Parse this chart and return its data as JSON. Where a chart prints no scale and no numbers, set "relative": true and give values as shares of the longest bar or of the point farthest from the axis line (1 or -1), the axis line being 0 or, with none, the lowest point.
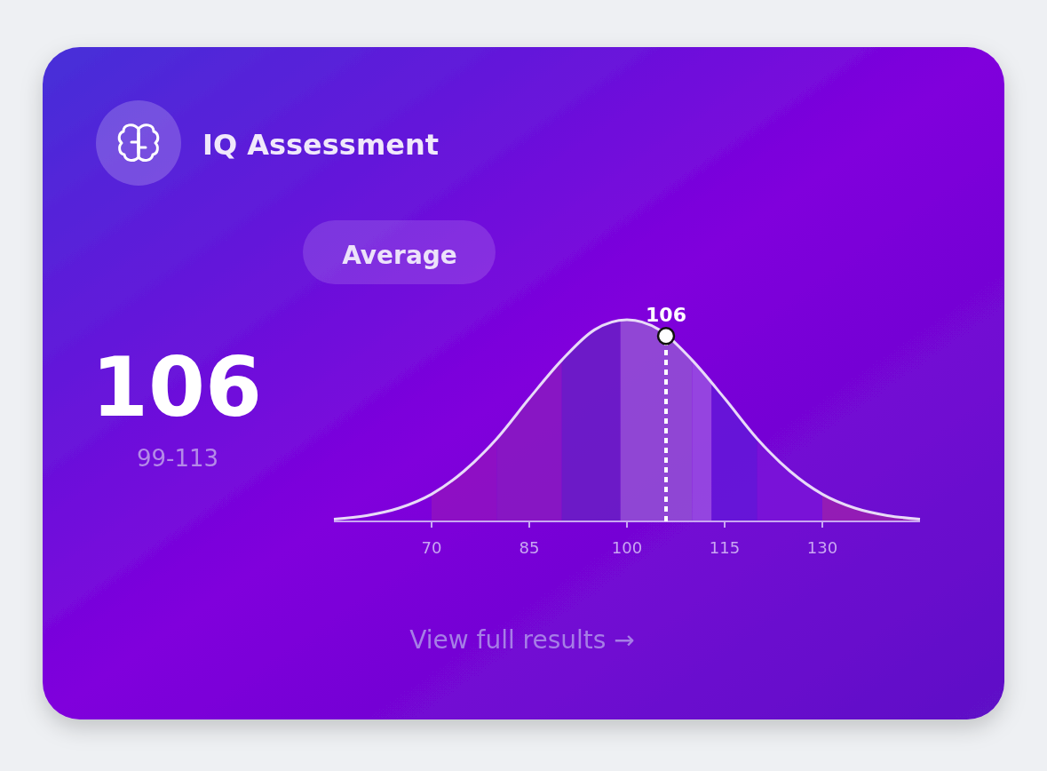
{
  "chart_data": {
    "type": "line",
    "title": "IQ Assessment",
    "relative": true,
    "xlim": [
      55,
      145
    ],
    "xticks": [
      70,
      85,
      100,
      115,
      130
    ],
    "series": [
      {
        "color": "#e8daf8",
        "x": [
          55,
          60,
          65,
          70,
          75,
          80,
          85,
          90,
          95,
          100,
          105,
          110,
          115,
          120,
          125,
          130,
          135,
          140,
          145
        ],
        "values": [
          0.011,
          0.029,
          0.066,
          0.135,
          0.25,
          0.41,
          0.61,
          0.8,
          0.95,
          1,
          0.95,
          0.8,
          0.61,
          0.41,
          0.25,
          0.135,
          0.066,
          0.029,
          0.011
        ]
      },
      {
        "type": "scatter",
        "color": "#ffffff",
        "x": [
          106
        ],
        "values": [
          0.92
        ],
        "marker": "circle"
      }
    ],
    "bands": [
      {
        "axis": "x",
        "from": 70,
        "to": 80,
        "color": "#9012c0"
      },
      {
        "axis": "x",
        "from": 80,
        "to": 90,
        "color": "#8a1ac0"
      },
      {
        "axis": "x",
        "from": 90,
        "to": 99,
        "color": "#6a1ec4"
      },
      {
        "axis": "x",
        "from": 99,
        "to": 110,
        "color": "#9452d4"
      },
      {
        "axis": "x",
        "from": 110,
        "to": 113,
        "color": "#9a50e2"
      },
      {
        "axis": "x",
        "from": 113,
        "to": 120,
        "color": "#6418d8"
      },
      {
        "axis": "x",
        "from": 120,
        "to": 130,
        "color": "#7a14d8"
      },
      {
        "axis": "x",
        "from": 130,
        "to": 145,
        "color": "#9a20b0"
      }
    ],
    "ref_lines": [
      {
        "axis": "x",
        "value": 106,
        "color": "#ffffff",
        "line_style": "dashed"
      }
    ],
    "annotations": [
      "Average",
      "106",
      "99-113",
      "View full results →",
      {
        "text": "106",
        "x": 106,
        "y": 0.92
      }
    ]
  }
}
